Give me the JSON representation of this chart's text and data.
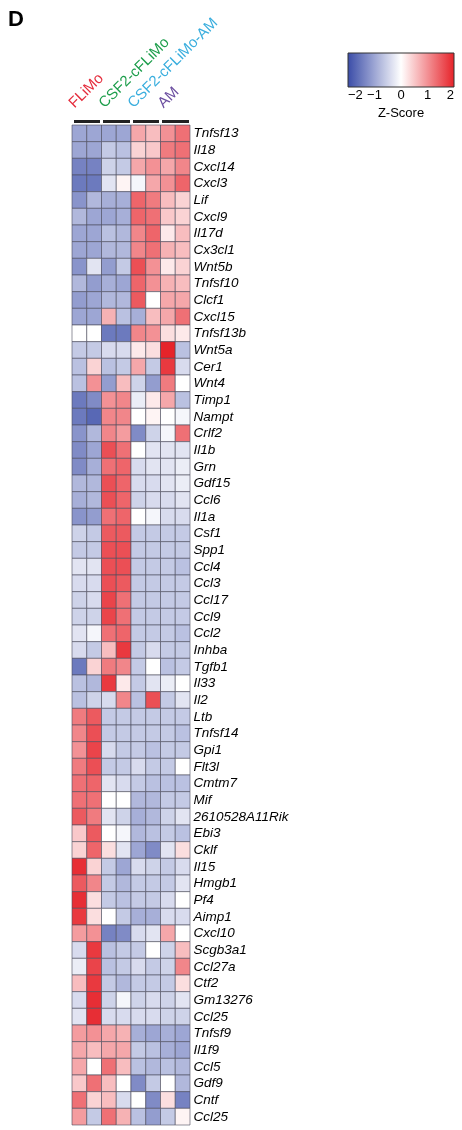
{
  "chart_data": {
    "type": "heatmap",
    "clabel": "Z-Score",
    "clim": [
      -2,
      2
    ],
    "cticks": [
      -2,
      -1,
      0,
      1,
      2
    ],
    "annotations": [
      "D",
      "FLiMo",
      "CSF2-cFLiMo",
      "CSF2-cFLiMo-AM",
      "AM"
    ],
    "categories": [
      null,
      null,
      null,
      null,
      null,
      null,
      null,
      null
    ],
    "y_categories": [
      "Tnfsf13",
      "Il18",
      "Cxcl14",
      "Cxcl3",
      "Lif",
      "Cxcl9",
      "Il17d",
      "Cx3cl1",
      "Wnt5b",
      "Tnfsf10",
      "Clcf1",
      "Cxcl15",
      "Tnfsf13b",
      "Wnt5a",
      "Cer1",
      "Wnt4",
      "Timp1",
      "Nampt",
      "Crlf2",
      "Il1b",
      "Grn",
      "Gdf15",
      "Ccl6",
      "Il1a",
      "Csf1",
      "Spp1",
      "Ccl4",
      "Ccl3",
      "Ccl17",
      "Ccl9",
      "Ccl2",
      "Inhba",
      "Tgfb1",
      "Il33",
      "Il2",
      "Ltb",
      "Tnfsf14",
      "Gpi1",
      "Flt3l",
      "Cmtm7",
      "Mif",
      "2610528A11Rik",
      "Ebi3",
      "Cklf",
      "Il15",
      "Hmgb1",
      "Pf4",
      "Aimp1",
      "Cxcl10",
      "Scgb3a1",
      "Ccl27a",
      "Ctf2",
      "Gm13276",
      "Ccl25",
      "Tnfsf9",
      "Il1f9",
      "Ccl5",
      "Gdf9",
      "Cntf",
      "Ccl25"
    ],
    "cells": [
      [
        -1,
        -1,
        -1,
        -1,
        0.8,
        0.6,
        1,
        1.3
      ],
      [
        -1,
        -1,
        -0.6,
        -0.7,
        0.4,
        0.5,
        1.2,
        1.3
      ],
      [
        -1.4,
        -1.4,
        -0.5,
        -0.6,
        0.8,
        1,
        0.8,
        1.1
      ],
      [
        -1.5,
        -1.5,
        -0.3,
        0.1,
        -0.1,
        0.8,
        1,
        1.4
      ],
      [
        -1.2,
        -0.8,
        -0.9,
        -0.9,
        1.4,
        1.2,
        0.6,
        0.4
      ],
      [
        -0.8,
        -1,
        -1,
        -0.9,
        1.4,
        1.3,
        0.5,
        0.4
      ],
      [
        -1,
        -1,
        -0.7,
        -0.8,
        1.1,
        1.4,
        0.2,
        0.6
      ],
      [
        -1,
        -1,
        -0.8,
        -0.8,
        1.1,
        1.3,
        0.7,
        0.6
      ],
      [
        -1.2,
        -0.3,
        -1.1,
        -0.6,
        1.6,
        1,
        0.2,
        0.4
      ],
      [
        -0.8,
        -1.1,
        -0.9,
        -1,
        1.4,
        1,
        0.7,
        0.6
      ],
      [
        -1.1,
        -1,
        -0.8,
        -0.8,
        1.5,
        0,
        0.8,
        0.8
      ],
      [
        -1,
        -1,
        0.7,
        -0.7,
        -0.9,
        0.6,
        0.8,
        1.3
      ],
      [
        0,
        0,
        -1.5,
        -1.5,
        1.1,
        1,
        0.3,
        0.2
      ],
      [
        -0.6,
        -0.6,
        -0.4,
        -0.4,
        0.2,
        0.3,
        2,
        -0.7
      ],
      [
        -0.7,
        0.4,
        -0.7,
        -0.6,
        0.8,
        -0.6,
        1.8,
        -0.4
      ],
      [
        -0.7,
        1,
        -1.1,
        0.6,
        -0.5,
        -1.1,
        1.2,
        0
      ],
      [
        -1.5,
        -1.3,
        1,
        1.1,
        -0.2,
        0.2,
        0.8,
        -0.7
      ],
      [
        -1.5,
        -1.7,
        1.1,
        1.1,
        0,
        0.1,
        0,
        -0.1
      ],
      [
        -1.2,
        -0.8,
        1.1,
        0.9,
        -1.3,
        -0.5,
        -0.1,
        1.3
      ],
      [
        -1.3,
        -1,
        1.6,
        1.3,
        0,
        -0.3,
        -0.3,
        -0.3
      ],
      [
        -1.3,
        -0.9,
        1.3,
        1.4,
        -0.4,
        -0.3,
        -0.3,
        -0.2
      ],
      [
        -0.8,
        -0.8,
        1.6,
        1.4,
        -0.4,
        -0.4,
        -0.3,
        -0.2
      ],
      [
        -0.9,
        -0.8,
        1.6,
        1.4,
        -0.5,
        -0.4,
        -0.4,
        -0.3
      ],
      [
        -1.2,
        -1.1,
        1.3,
        1.4,
        0,
        -0.1,
        -0.4,
        -0.4
      ],
      [
        -0.5,
        -0.6,
        1.5,
        1.5,
        -0.6,
        -0.6,
        -0.6,
        -0.6
      ],
      [
        -0.6,
        -0.6,
        1.6,
        1.6,
        -0.6,
        -0.6,
        -0.6,
        -0.6
      ],
      [
        -0.3,
        -0.3,
        1.6,
        1.6,
        -0.6,
        -0.6,
        -0.6,
        -0.7
      ],
      [
        -0.4,
        -0.4,
        1.6,
        1.5,
        -0.6,
        -0.6,
        -0.6,
        -0.6
      ],
      [
        -0.5,
        -0.4,
        1.7,
        1.3,
        -0.6,
        -0.6,
        -0.6,
        -0.6
      ],
      [
        -0.5,
        -0.5,
        1.7,
        1.3,
        -0.6,
        -0.6,
        -0.6,
        -0.6
      ],
      [
        -0.3,
        -0.1,
        1.3,
        1.4,
        -0.6,
        -0.6,
        -0.6,
        -0.7
      ],
      [
        -0.4,
        -0.6,
        0.6,
        1.8,
        -0.6,
        -0.4,
        -0.6,
        -0.6
      ],
      [
        -1.5,
        0.4,
        1.2,
        1.1,
        -0.6,
        0,
        -0.7,
        -0.6
      ],
      [
        -0.7,
        -0.8,
        1.8,
        0.2,
        -0.6,
        -0.3,
        -0.2,
        0
      ],
      [
        -0.7,
        -0.5,
        -0.4,
        1.1,
        -0.7,
        1.6,
        -0.6,
        -0.3
      ],
      [
        1.2,
        1.5,
        -0.6,
        -0.6,
        -0.6,
        -0.6,
        -0.6,
        -0.6
      ],
      [
        1.1,
        1.6,
        -0.6,
        -0.6,
        -0.6,
        -0.6,
        -0.6,
        -0.7
      ],
      [
        1,
        1.7,
        -0.4,
        -0.6,
        -0.6,
        -0.7,
        -0.6,
        -0.6
      ],
      [
        1.2,
        1.6,
        -0.6,
        -0.6,
        -0.4,
        -0.6,
        -0.6,
        0
      ],
      [
        1.3,
        1.4,
        -0.3,
        -0.4,
        -0.6,
        -0.7,
        -0.7,
        -0.7
      ],
      [
        1.3,
        1.3,
        0,
        0,
        -0.8,
        -0.8,
        -0.6,
        -0.6
      ],
      [
        1.5,
        1.2,
        -0.3,
        -0.5,
        -0.9,
        -0.8,
        -0.5,
        -0.3
      ],
      [
        0.5,
        1.5,
        0,
        -0.1,
        -0.8,
        -0.7,
        -0.6,
        -0.7
      ],
      [
        0.4,
        1.4,
        0.3,
        -0.3,
        -1,
        -1.3,
        -0.3,
        0.3
      ],
      [
        1.9,
        0.4,
        -0.6,
        -1,
        -0.4,
        -0.5,
        -0.6,
        -0.4
      ],
      [
        1.5,
        1.1,
        -0.6,
        -0.8,
        -0.6,
        -0.6,
        -0.6,
        -0.3
      ],
      [
        1.9,
        0.3,
        -0.6,
        -0.7,
        -0.6,
        -0.6,
        -0.4,
        0
      ],
      [
        1.8,
        0.3,
        0,
        -0.6,
        -0.9,
        -0.9,
        -0.4,
        -0.4
      ],
      [
        0.9,
        1,
        -1.4,
        -1.3,
        -0.4,
        -0.3,
        0.8,
        0
      ],
      [
        -0.4,
        1.8,
        -0.7,
        -0.6,
        -0.6,
        0,
        -0.5,
        0.6
      ],
      [
        -0.2,
        1.7,
        -0.7,
        -0.6,
        -0.4,
        -0.6,
        -0.5,
        1.1
      ],
      [
        0.6,
        1.8,
        -0.6,
        -0.8,
        -0.6,
        -0.6,
        -0.6,
        0.3
      ],
      [
        -0.4,
        1.9,
        -0.5,
        -0.1,
        -0.5,
        -0.4,
        -0.5,
        -0.3
      ],
      [
        -0.3,
        1.9,
        -0.4,
        -0.4,
        -0.4,
        -0.4,
        -0.5,
        -0.5
      ],
      [
        0.9,
        1,
        0.8,
        0.7,
        -0.9,
        -1,
        -0.9,
        -1
      ],
      [
        0.8,
        0.6,
        0.8,
        0.8,
        -0.6,
        -0.7,
        -0.9,
        -1
      ],
      [
        0.8,
        0,
        1.3,
        0.6,
        -0.7,
        -0.8,
        -0.7,
        -0.8
      ],
      [
        0.5,
        1.3,
        0.6,
        0,
        -1.3,
        -0.6,
        0,
        -0.8
      ],
      [
        1.3,
        0.4,
        0.6,
        -0.4,
        0,
        -1.3,
        0.3,
        -1.4
      ],
      [
        0.9,
        -0.6,
        1.3,
        0.7,
        -0.7,
        -1.1,
        -0.6,
        0.1
      ]
    ]
  }
}
